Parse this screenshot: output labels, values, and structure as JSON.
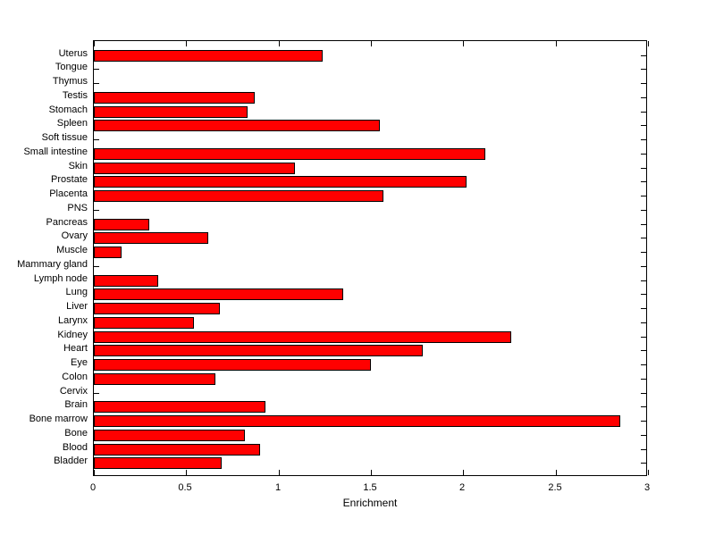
{
  "chart_data": {
    "type": "bar",
    "orientation": "horizontal",
    "title": "",
    "xlabel": "Enrichment",
    "ylabel": "",
    "xlim": [
      0,
      3
    ],
    "xticks": [
      0,
      0.5,
      1,
      1.5,
      2,
      2.5,
      3
    ],
    "xtick_labels": [
      "0",
      "0.5",
      "1",
      "1.5",
      "2",
      "2.5",
      "3"
    ],
    "grid": false,
    "legend": null,
    "bar_color": "#ff0000",
    "bar_edge_color": "#000000",
    "axis_color": "#000000",
    "background_color": "#ffffff",
    "categories_top_to_bottom": [
      "Uterus",
      "Tongue",
      "Thymus",
      "Testis",
      "Stomach",
      "Spleen",
      "Soft tissue",
      "Small intestine",
      "Skin",
      "Prostate",
      "Placenta",
      "PNS",
      "Pancreas",
      "Ovary",
      "Muscle",
      "Mammary gland",
      "Lymph node",
      "Lung",
      "Liver",
      "Larynx",
      "Kidney",
      "Heart",
      "Eye",
      "Colon",
      "Cervix",
      "Brain",
      "Bone marrow",
      "Bone",
      "Blood",
      "Bladder"
    ],
    "values_top_to_bottom": [
      1.24,
      0,
      0,
      0.87,
      0.83,
      1.55,
      0,
      2.12,
      1.09,
      2.02,
      1.57,
      0,
      0.3,
      0.62,
      0.15,
      0,
      0.35,
      1.35,
      0.68,
      0.54,
      2.26,
      1.78,
      1.5,
      0.66,
      0,
      0.93,
      2.85,
      0.82,
      0.9,
      0.69
    ]
  }
}
